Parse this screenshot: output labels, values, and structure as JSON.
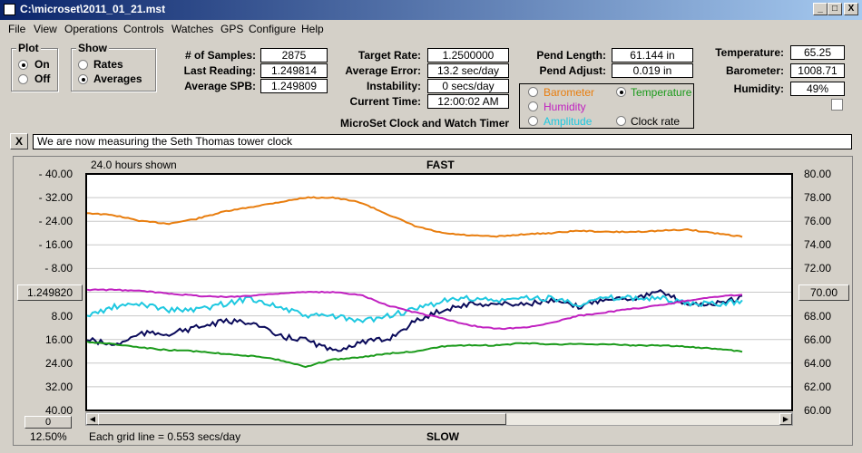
{
  "window": {
    "title": "C:\\microset\\2011_01_21.mst",
    "min_glyph": "_",
    "max_glyph": "□",
    "close_glyph": "X"
  },
  "menu": [
    "File",
    "View",
    "Operations",
    "Controls",
    "Watches",
    "GPS",
    "Configure",
    "Help"
  ],
  "plot_group": {
    "title": "Plot",
    "options": [
      {
        "label": "On",
        "selected": true
      },
      {
        "label": "Off",
        "selected": false
      }
    ]
  },
  "show_group": {
    "title": "Show",
    "options": [
      {
        "label": "Rates",
        "selected": false
      },
      {
        "label": "Averages",
        "selected": true
      }
    ]
  },
  "stats": [
    {
      "label": "# of Samples:",
      "value": "2875"
    },
    {
      "label": "Last Reading:",
      "value": "1.249814"
    },
    {
      "label": "Average SPB:",
      "value": "1.249809"
    }
  ],
  "rates": [
    {
      "label": "Target Rate:",
      "value": "1.2500000",
      "boxed": true
    },
    {
      "label": "Average Error:",
      "value": "13.2 sec/day",
      "boxed": true
    },
    {
      "label": "Instability:",
      "value": "0 secs/day",
      "boxed": true
    },
    {
      "label": "Current Time:",
      "value": "12:00:02 AM",
      "boxed": true
    }
  ],
  "app_caption": "MicroSet Clock and Watch Timer",
  "pendulum": [
    {
      "label": "Pend Length:",
      "value": "61.144 in"
    },
    {
      "label": "Pend Adjust:",
      "value": "0.019 in"
    }
  ],
  "overlay_options": [
    {
      "label": "Barometer",
      "color": "#e87d0e",
      "selected": false
    },
    {
      "label": "Temperature",
      "color": "#1a9a1a",
      "selected": true
    },
    {
      "label": "Humidity",
      "color": "#c020c0",
      "selected": false
    },
    {
      "label": "Amplitude",
      "color": "#1ec8e0",
      "selected": false
    },
    {
      "label": "Clock rate",
      "color": "#000000",
      "selected": false
    }
  ],
  "environment": [
    {
      "label": "Temperature:",
      "value": "65.25"
    },
    {
      "label": "Barometer:",
      "value": "1008.71"
    },
    {
      "label": "Humidity:",
      "value": "49%"
    }
  ],
  "note": {
    "close_glyph": "X",
    "text": "We are now measuring the Seth Thomas tower clock"
  },
  "chart": {
    "hours_shown": "24.0 hours shown",
    "top_label": "FAST",
    "bottom_label": "SLOW",
    "center_button": "1.249820",
    "right_center_button": "70.00",
    "zoom_button": "0",
    "zoom_percent": "12.50%",
    "grid_note": "Each grid line = 0.553 secs/day"
  },
  "chart_data": {
    "type": "line",
    "x_range_hours": [
      0,
      24
    ],
    "left_axis": {
      "ticks": [
        "- 40.00",
        "- 32.00",
        "- 24.00",
        "- 16.00",
        "- 8.00",
        "",
        "8.00",
        "16.00",
        "24.00",
        "32.00",
        "40.00"
      ],
      "range": [
        40,
        -40
      ]
    },
    "right_axis": {
      "ticks": [
        "80.00",
        "78.00",
        "76.00",
        "74.00",
        "72.00",
        "70.00",
        "68.00",
        "66.00",
        "64.00",
        "62.00",
        "60.00"
      ],
      "range": [
        80,
        60
      ]
    },
    "grid": true,
    "series": [
      {
        "color": "#e87d0e",
        "values_right": [
          76.7,
          76.5,
          76.0,
          75.8,
          76.2,
          76.8,
          77.2,
          77.6,
          78.0,
          78.0,
          77.6,
          76.6,
          75.6,
          75.0,
          74.8,
          74.7,
          74.9,
          75.0,
          75.2,
          75.1,
          75.1,
          75.2,
          75.3,
          75.0,
          74.7
        ]
      },
      {
        "color": "#0a0a5a",
        "values_left": [
          -16,
          -18,
          -14,
          -14,
          -12,
          -10,
          -10,
          -15,
          -16,
          -20,
          -17,
          -16,
          -10,
          -6,
          -4,
          -4,
          -4,
          -3,
          -5,
          -2,
          -2,
          0,
          -4,
          -4,
          -2
        ]
      },
      {
        "color": "#1ec8e0",
        "values_left": [
          -8,
          -5,
          -4,
          -6,
          -6,
          -4,
          -2,
          -5,
          -8,
          -8,
          -10,
          -8,
          -6,
          -3,
          -2,
          -3,
          -2,
          -2,
          -4,
          -2,
          -2,
          -2,
          -4,
          -4,
          -3
        ]
      },
      {
        "color": "#c020c0",
        "values_right": [
          70.2,
          70.2,
          70.1,
          69.9,
          69.7,
          69.6,
          69.7,
          69.9,
          70.0,
          70.0,
          69.8,
          68.9,
          68.3,
          67.8,
          67.2,
          66.9,
          67.0,
          67.4,
          68.0,
          68.3,
          68.6,
          68.9,
          69.3,
          69.6,
          69.8
        ]
      },
      {
        "color": "#1a9a1a",
        "values_right": [
          65.8,
          65.6,
          65.3,
          65.1,
          65.0,
          64.8,
          64.6,
          64.3,
          63.7,
          64.3,
          64.5,
          64.8,
          65.0,
          65.4,
          65.5,
          65.5,
          65.7,
          65.6,
          65.6,
          65.6,
          65.5,
          65.5,
          65.4,
          65.2,
          65.0
        ]
      }
    ]
  }
}
